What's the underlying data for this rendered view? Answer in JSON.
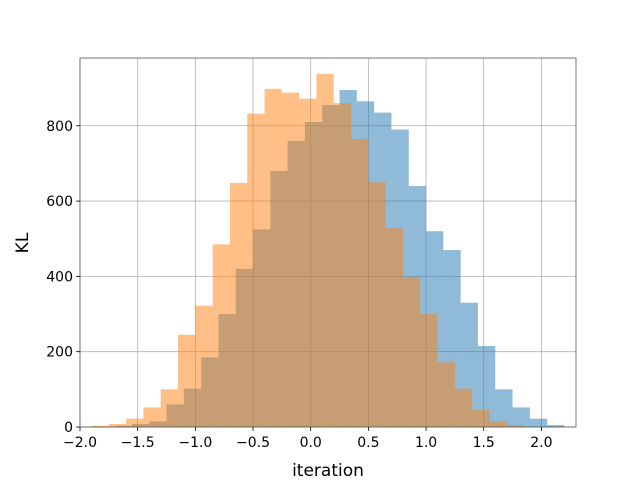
{
  "chart_data": {
    "type": "bar",
    "title": "",
    "xlabel": "iteration",
    "ylabel": "KL",
    "xlim": [
      -2.0,
      2.3
    ],
    "ylim": [
      0,
      980
    ],
    "xticks": [
      -2.0,
      -1.5,
      -1.0,
      -0.5,
      0.0,
      0.5,
      1.0,
      1.5,
      2.0
    ],
    "xtick_labels": [
      "−2.0",
      "−1.5",
      "−1.0",
      "−0.5",
      "0.0",
      "0.5",
      "1.0",
      "1.5",
      "2.0"
    ],
    "yticks": [
      0,
      200,
      400,
      600,
      800
    ],
    "ytick_labels": [
      "0",
      "200",
      "400",
      "600",
      "800"
    ],
    "grid": true,
    "series": [
      {
        "color": "#1f77b4",
        "opacity": 0.5,
        "bins": [
          [
            -1.7,
            -1.55,
            3
          ],
          [
            -1.55,
            -1.4,
            8
          ],
          [
            -1.4,
            -1.25,
            15
          ],
          [
            -1.25,
            -1.1,
            60
          ],
          [
            -1.1,
            -0.95,
            102
          ],
          [
            -0.95,
            -0.8,
            185
          ],
          [
            -0.8,
            -0.65,
            300
          ],
          [
            -0.65,
            -0.5,
            420
          ],
          [
            -0.5,
            -0.35,
            525
          ],
          [
            -0.35,
            -0.2,
            680
          ],
          [
            -0.2,
            -0.05,
            760
          ],
          [
            -0.05,
            0.1,
            810
          ],
          [
            0.1,
            0.25,
            855
          ],
          [
            0.25,
            0.4,
            895
          ],
          [
            0.4,
            0.55,
            865
          ],
          [
            0.55,
            0.7,
            835
          ],
          [
            0.7,
            0.85,
            790
          ],
          [
            0.85,
            1.0,
            640
          ],
          [
            1.0,
            1.15,
            520
          ],
          [
            1.15,
            1.3,
            470
          ],
          [
            1.3,
            1.45,
            330
          ],
          [
            1.45,
            1.6,
            215
          ],
          [
            1.6,
            1.75,
            100
          ],
          [
            1.75,
            1.9,
            52
          ],
          [
            1.9,
            2.05,
            22
          ],
          [
            2.05,
            2.2,
            5
          ]
        ]
      },
      {
        "color": "#ff7f0e",
        "opacity": 0.5,
        "bins": [
          [
            -1.9,
            -1.75,
            3
          ],
          [
            -1.75,
            -1.6,
            8
          ],
          [
            -1.6,
            -1.45,
            22
          ],
          [
            -1.45,
            -1.3,
            52
          ],
          [
            -1.3,
            -1.15,
            100
          ],
          [
            -1.15,
            -1.0,
            245
          ],
          [
            -1.0,
            -0.85,
            322
          ],
          [
            -0.85,
            -0.7,
            485
          ],
          [
            -0.7,
            -0.55,
            648
          ],
          [
            -0.55,
            -0.4,
            832
          ],
          [
            -0.4,
            -0.25,
            898
          ],
          [
            -0.25,
            -0.1,
            888
          ],
          [
            -0.1,
            0.05,
            872
          ],
          [
            0.05,
            0.2,
            938
          ],
          [
            0.2,
            0.35,
            860
          ],
          [
            0.35,
            0.5,
            765
          ],
          [
            0.5,
            0.65,
            650
          ],
          [
            0.65,
            0.8,
            528
          ],
          [
            0.8,
            0.95,
            398
          ],
          [
            0.95,
            1.1,
            300
          ],
          [
            1.1,
            1.25,
            172
          ],
          [
            1.25,
            1.4,
            102
          ],
          [
            1.4,
            1.55,
            45
          ],
          [
            1.55,
            1.7,
            15
          ],
          [
            1.7,
            1.85,
            5
          ]
        ]
      }
    ]
  }
}
